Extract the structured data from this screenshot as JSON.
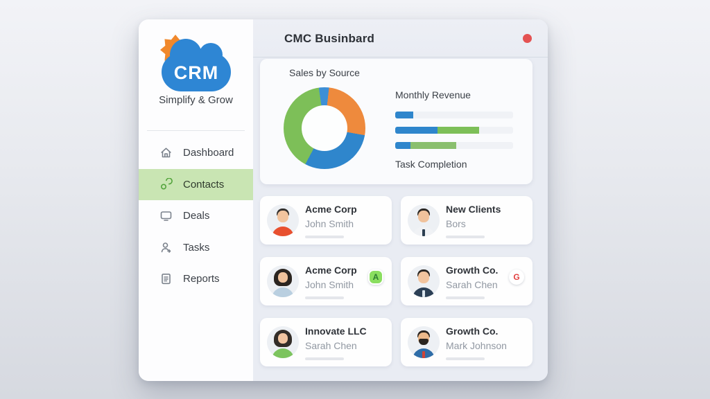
{
  "window": {
    "title": "CMC Businbard",
    "notification_color": "#e45252"
  },
  "logo": {
    "text": "CRM",
    "tagline": "Simplify & Grow",
    "cloud_color": "#2e86d4",
    "sun_color": "#f0882c"
  },
  "sidebar": {
    "active_bg": "#c9e5b3",
    "items": [
      {
        "label": "Dashboard",
        "icon": "home-icon",
        "active": false
      },
      {
        "label": "Contacts",
        "icon": "contacts-icon",
        "active": true
      },
      {
        "label": "Deals",
        "icon": "deals-icon",
        "active": false
      },
      {
        "label": "Tasks",
        "icon": "tasks-icon",
        "active": false
      },
      {
        "label": "Reports",
        "icon": "reports-icon",
        "active": false
      }
    ]
  },
  "sales": {
    "title": "Sales by Source"
  },
  "revenue": {
    "title": "Monthly Revenue",
    "footer_label": "Task Completion"
  },
  "chart_data": [
    {
      "type": "pie",
      "title": "Sales by Source",
      "donut": true,
      "start_angle_deg": -8,
      "series": [
        {
          "name": "blue-sliver",
          "value": 4,
          "color": "#3d8fd6"
        },
        {
          "name": "orange",
          "value": 26,
          "color": "#ee8a3d"
        },
        {
          "name": "blue",
          "value": 30,
          "color": "#2f86cc"
        },
        {
          "name": "green",
          "value": 40,
          "color": "#7dbf58"
        }
      ]
    },
    {
      "type": "bar",
      "title": "Monthly Revenue",
      "orientation": "horizontal",
      "track_color": "#f0f2f6",
      "bars": [
        {
          "segments": [
            {
              "color": "#2f86cc",
              "pct": 15
            }
          ]
        },
        {
          "segments": [
            {
              "color": "#2f86cc",
              "pct": 36
            },
            {
              "color": "#7dbf58",
              "pct": 35
            }
          ]
        },
        {
          "segments": [
            {
              "color": "#2f86cc",
              "pct": 13
            },
            {
              "color": "#8abf6e",
              "pct": 39
            }
          ]
        }
      ]
    }
  ],
  "contacts": [
    {
      "company": "Acme Corp",
      "name": "John Smith",
      "avatar": {
        "style": "male",
        "hair": "#33302d",
        "skin": "#f2c49e",
        "shirt": "#e8502f",
        "tie": null,
        "beard": false
      },
      "badge": null
    },
    {
      "company": "New Clients",
      "name": "Bors",
      "avatar": {
        "style": "male",
        "hair": "#2b2723",
        "skin": "#f0c29c",
        "shirt": "#f0f2f5",
        "tie": "#2c3e50",
        "beard": false
      },
      "badge": null
    },
    {
      "company": "Acme Corp",
      "name": "John Smith",
      "avatar": {
        "style": "female",
        "hair": "#2b2520",
        "skin": "#f0c29c",
        "shirt": "#b9cfe0",
        "tie": null,
        "beard": false
      },
      "badge": {
        "letter": "A",
        "bg": "#8ade5f",
        "color": "#2e7d32",
        "shape": "square",
        "ring": "#ffffff"
      }
    },
    {
      "company": "Growth Co.",
      "name": "Sarah Chen",
      "avatar": {
        "style": "male",
        "hair": "#2b2723",
        "skin": "#f2c49e",
        "shirt": "#2b3f55",
        "tie": "#dce6ef",
        "beard": false
      },
      "badge": {
        "letter": "G",
        "bg": "#ffffff",
        "color": "#e23f3f",
        "shape": "round",
        "ring": null
      }
    },
    {
      "company": "Innovate LLC",
      "name": "Sarah Chen",
      "avatar": {
        "style": "female",
        "hair": "#332d28",
        "skin": "#f2c5a1",
        "shirt": "#7cc45e",
        "tie": null,
        "beard": false
      },
      "badge": null
    },
    {
      "company": "Growth Co.",
      "name": "Mark Johnson",
      "avatar": {
        "style": "male",
        "hair": "#2a241f",
        "skin": "#edb98a",
        "shirt": "#2e6da8",
        "tie": "#cc4438",
        "beard": true
      },
      "badge": null
    }
  ]
}
